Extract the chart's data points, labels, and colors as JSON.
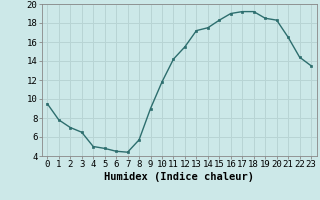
{
  "x": [
    0,
    1,
    2,
    3,
    4,
    5,
    6,
    7,
    8,
    9,
    10,
    11,
    12,
    13,
    14,
    15,
    16,
    17,
    18,
    19,
    20,
    21,
    22,
    23
  ],
  "y": [
    9.5,
    7.8,
    7.0,
    6.5,
    5.0,
    4.8,
    4.5,
    4.4,
    5.7,
    9.0,
    11.8,
    14.2,
    15.5,
    17.2,
    17.5,
    18.3,
    19.0,
    19.2,
    19.2,
    18.5,
    18.3,
    16.5,
    14.4,
    13.5
  ],
  "bg_color": "#cce8e8",
  "grid_color": "#b8d4d4",
  "line_color": "#2d6e6e",
  "marker_color": "#2d6e6e",
  "xlabel": "Humidex (Indice chaleur)",
  "ylim": [
    4,
    20
  ],
  "xlim": [
    -0.5,
    23.5
  ],
  "yticks": [
    4,
    6,
    8,
    10,
    12,
    14,
    16,
    18,
    20
  ],
  "xticks": [
    0,
    1,
    2,
    3,
    4,
    5,
    6,
    7,
    8,
    9,
    10,
    11,
    12,
    13,
    14,
    15,
    16,
    17,
    18,
    19,
    20,
    21,
    22,
    23
  ],
  "xlabel_fontsize": 7.5,
  "tick_fontsize": 6.5
}
